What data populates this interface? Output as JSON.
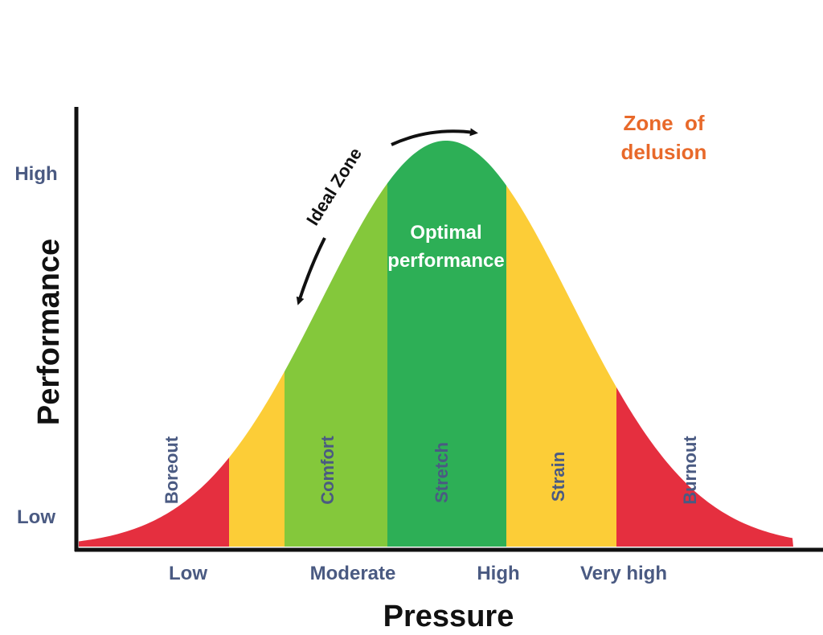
{
  "diagram": {
    "x_axis_title": "Pressure",
    "y_axis_title": "Performance",
    "y_ticks": {
      "high": "High",
      "low": "Low"
    },
    "x_ticks": [
      "Low",
      "Moderate",
      "High",
      "Very high"
    ],
    "zones": {
      "boreout": "Boreout",
      "comfort": "Comfort",
      "stretch": "Stretch",
      "strain": "Strain",
      "burnout": "Burnout"
    },
    "optimal_line1": "Optimal",
    "optimal_line2": "performance",
    "ideal_zone": "Ideal Zone",
    "delusion_line1": "Zone  of",
    "delusion_line2": "delusion",
    "colors": {
      "red": "#e52f3f",
      "yellow": "#fccd37",
      "light_green": "#84c83b",
      "dark_green": "#2daf56",
      "label_blue": "#4a5a82",
      "orange": "#e8692a"
    }
  }
}
